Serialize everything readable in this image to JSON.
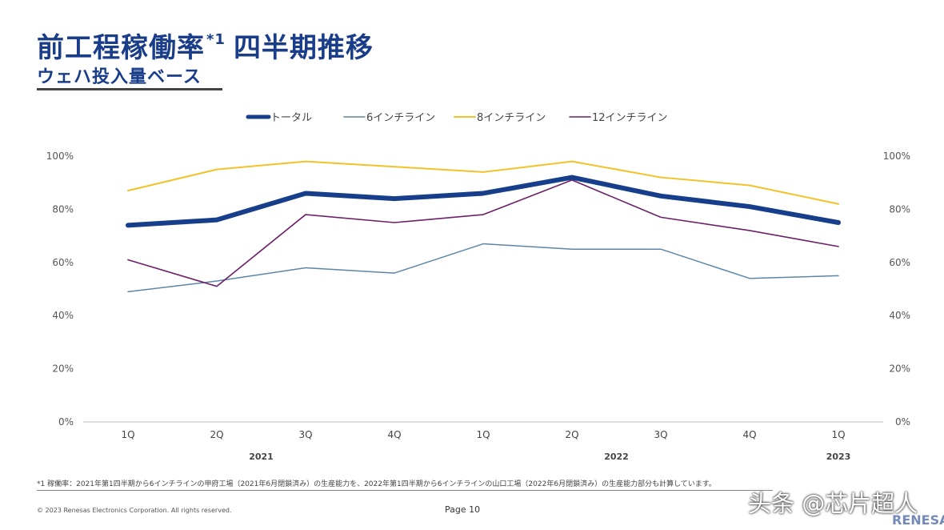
{
  "header": {
    "title_main": "前工程稼働率",
    "title_sup": "*1",
    "title_rest": "四半期推移",
    "subtitle": "ウェハ投入量ベース"
  },
  "chart_data": {
    "type": "line",
    "categories": [
      "1Q",
      "2Q",
      "3Q",
      "4Q",
      "1Q",
      "2Q",
      "3Q",
      "4Q",
      "1Q"
    ],
    "year_labels": [
      {
        "label": "2021",
        "index": 1.5
      },
      {
        "label": "2022",
        "index": 5.5
      },
      {
        "label": "2023",
        "index": 8
      }
    ],
    "ylim": [
      0,
      100
    ],
    "yticks": [
      "0%",
      "20%",
      "40%",
      "60%",
      "80%",
      "100%"
    ],
    "legend_position": "top",
    "series": [
      {
        "name": "6インチライン",
        "color": "#5b86a8",
        "width": 1.5,
        "values": [
          49,
          53,
          58,
          56,
          67,
          65,
          65,
          54,
          55
        ]
      },
      {
        "name": "12インチライン",
        "color": "#6e1f6a",
        "width": 1.6,
        "values": [
          61,
          51,
          78,
          75,
          78,
          91,
          77,
          72,
          66
        ]
      },
      {
        "name": "8インチライン",
        "color": "#f3c128",
        "width": 2,
        "values": [
          87,
          95,
          98,
          96,
          94,
          98,
          92,
          89,
          82
        ]
      },
      {
        "name": "トータル",
        "color": "#173e8a",
        "width": 6,
        "values": [
          74,
          76,
          86,
          84,
          86,
          92,
          85,
          81,
          75
        ]
      }
    ],
    "legend_order": [
      "トータル",
      "6インチライン",
      "8インチライン",
      "12インチライン"
    ]
  },
  "footer": {
    "footnote": "*1 稼働率：2021年第1四半期から6インチラインの甲府工場（2021年6月閉鎖済み）の生産能力を、2022年第1四半期から6インチラインの山口工場（2022年6月閉鎖済み）の生産能力部分も計算しています。",
    "copyright": "© 2023 Renesas Electronics Corporation. All rights reserved.",
    "page": "Page 10",
    "watermark": "头条 @芯片超人",
    "brand": "RENESAS"
  }
}
